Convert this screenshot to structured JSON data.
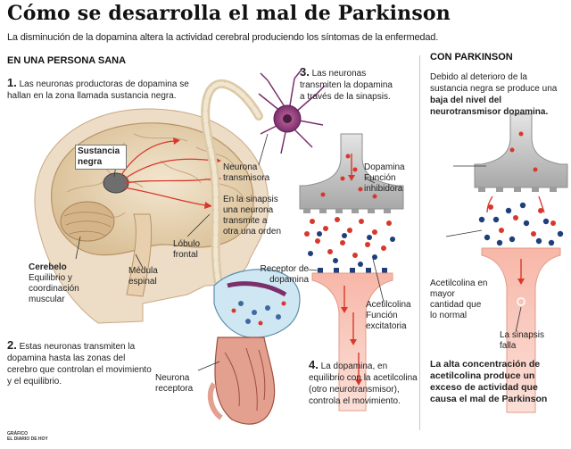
{
  "title": "Cómo se desarrolla el mal de Parkinson",
  "subtitle": "La disminución de la dopamina altera la actividad cerebral produciendo los síntomas de la enfermedad.",
  "healthy": {
    "heading": "EN UNA PERSONA SANA",
    "step1": {
      "num": "1.",
      "text": "Las neuronas productoras de dopamina se hallan en la zona llamada sustancia negra."
    },
    "step2": {
      "num": "2.",
      "text": "Estas neuronas transmiten la dopamina hasta las zonas del cerebro que controlan el movimiento y el equilibrio."
    },
    "step3": {
      "num": "3.",
      "text": "Las neuronas transmiten la dopamina a través de la sinapsis."
    },
    "step4": {
      "num": "4.",
      "text": "La dopamina, en equilibrio con la acetilcolina (otro neurotransmisor), controla el movimiento."
    },
    "labels": {
      "sustancia_negra": "Sustancia negra",
      "cerebelo_title": "Cerebelo",
      "cerebelo_desc": "Equilibrio y coordinación muscular",
      "medula": "Médula espinal",
      "lobulo": "Lóbulo frontal",
      "neurona_transmisora": "Neurona transmisora",
      "sinapsis_text": "En la sinapsis una neurona transmite a otra una orden",
      "neurona_receptora": "Neurona receptora",
      "dopamina_funcion": "Dopamina Función inhibidora",
      "receptor": "Receptor de dopamina",
      "acetilcolina_funcion": "Acetilcolina Función excitatoria"
    }
  },
  "parkinson": {
    "heading": "CON PARKINSON",
    "intro_plain": "Debido al deterioro de la sustancia negra se produce una",
    "intro_bold": "baja del nivel del neurotransmisor dopamina.",
    "acetilcolina": "Acetilcolina en mayor cantidad que lo normal",
    "sinapsis_falla": "La sinapsis falla",
    "conclusion": "La alta concentración de acetilcolina produce un exceso de actividad que causa el mal de Parkinson"
  },
  "credit": {
    "line1": "GRÁFICO",
    "line2": "EL DIARIO DE HOY"
  },
  "colors": {
    "dopamine": "#d8382c",
    "acetylcholine": "#1f3f7a",
    "gray_terminal": "#b9b9b9",
    "pink_receptor": "#f6b2a4",
    "brain": "#e6d3b3"
  }
}
